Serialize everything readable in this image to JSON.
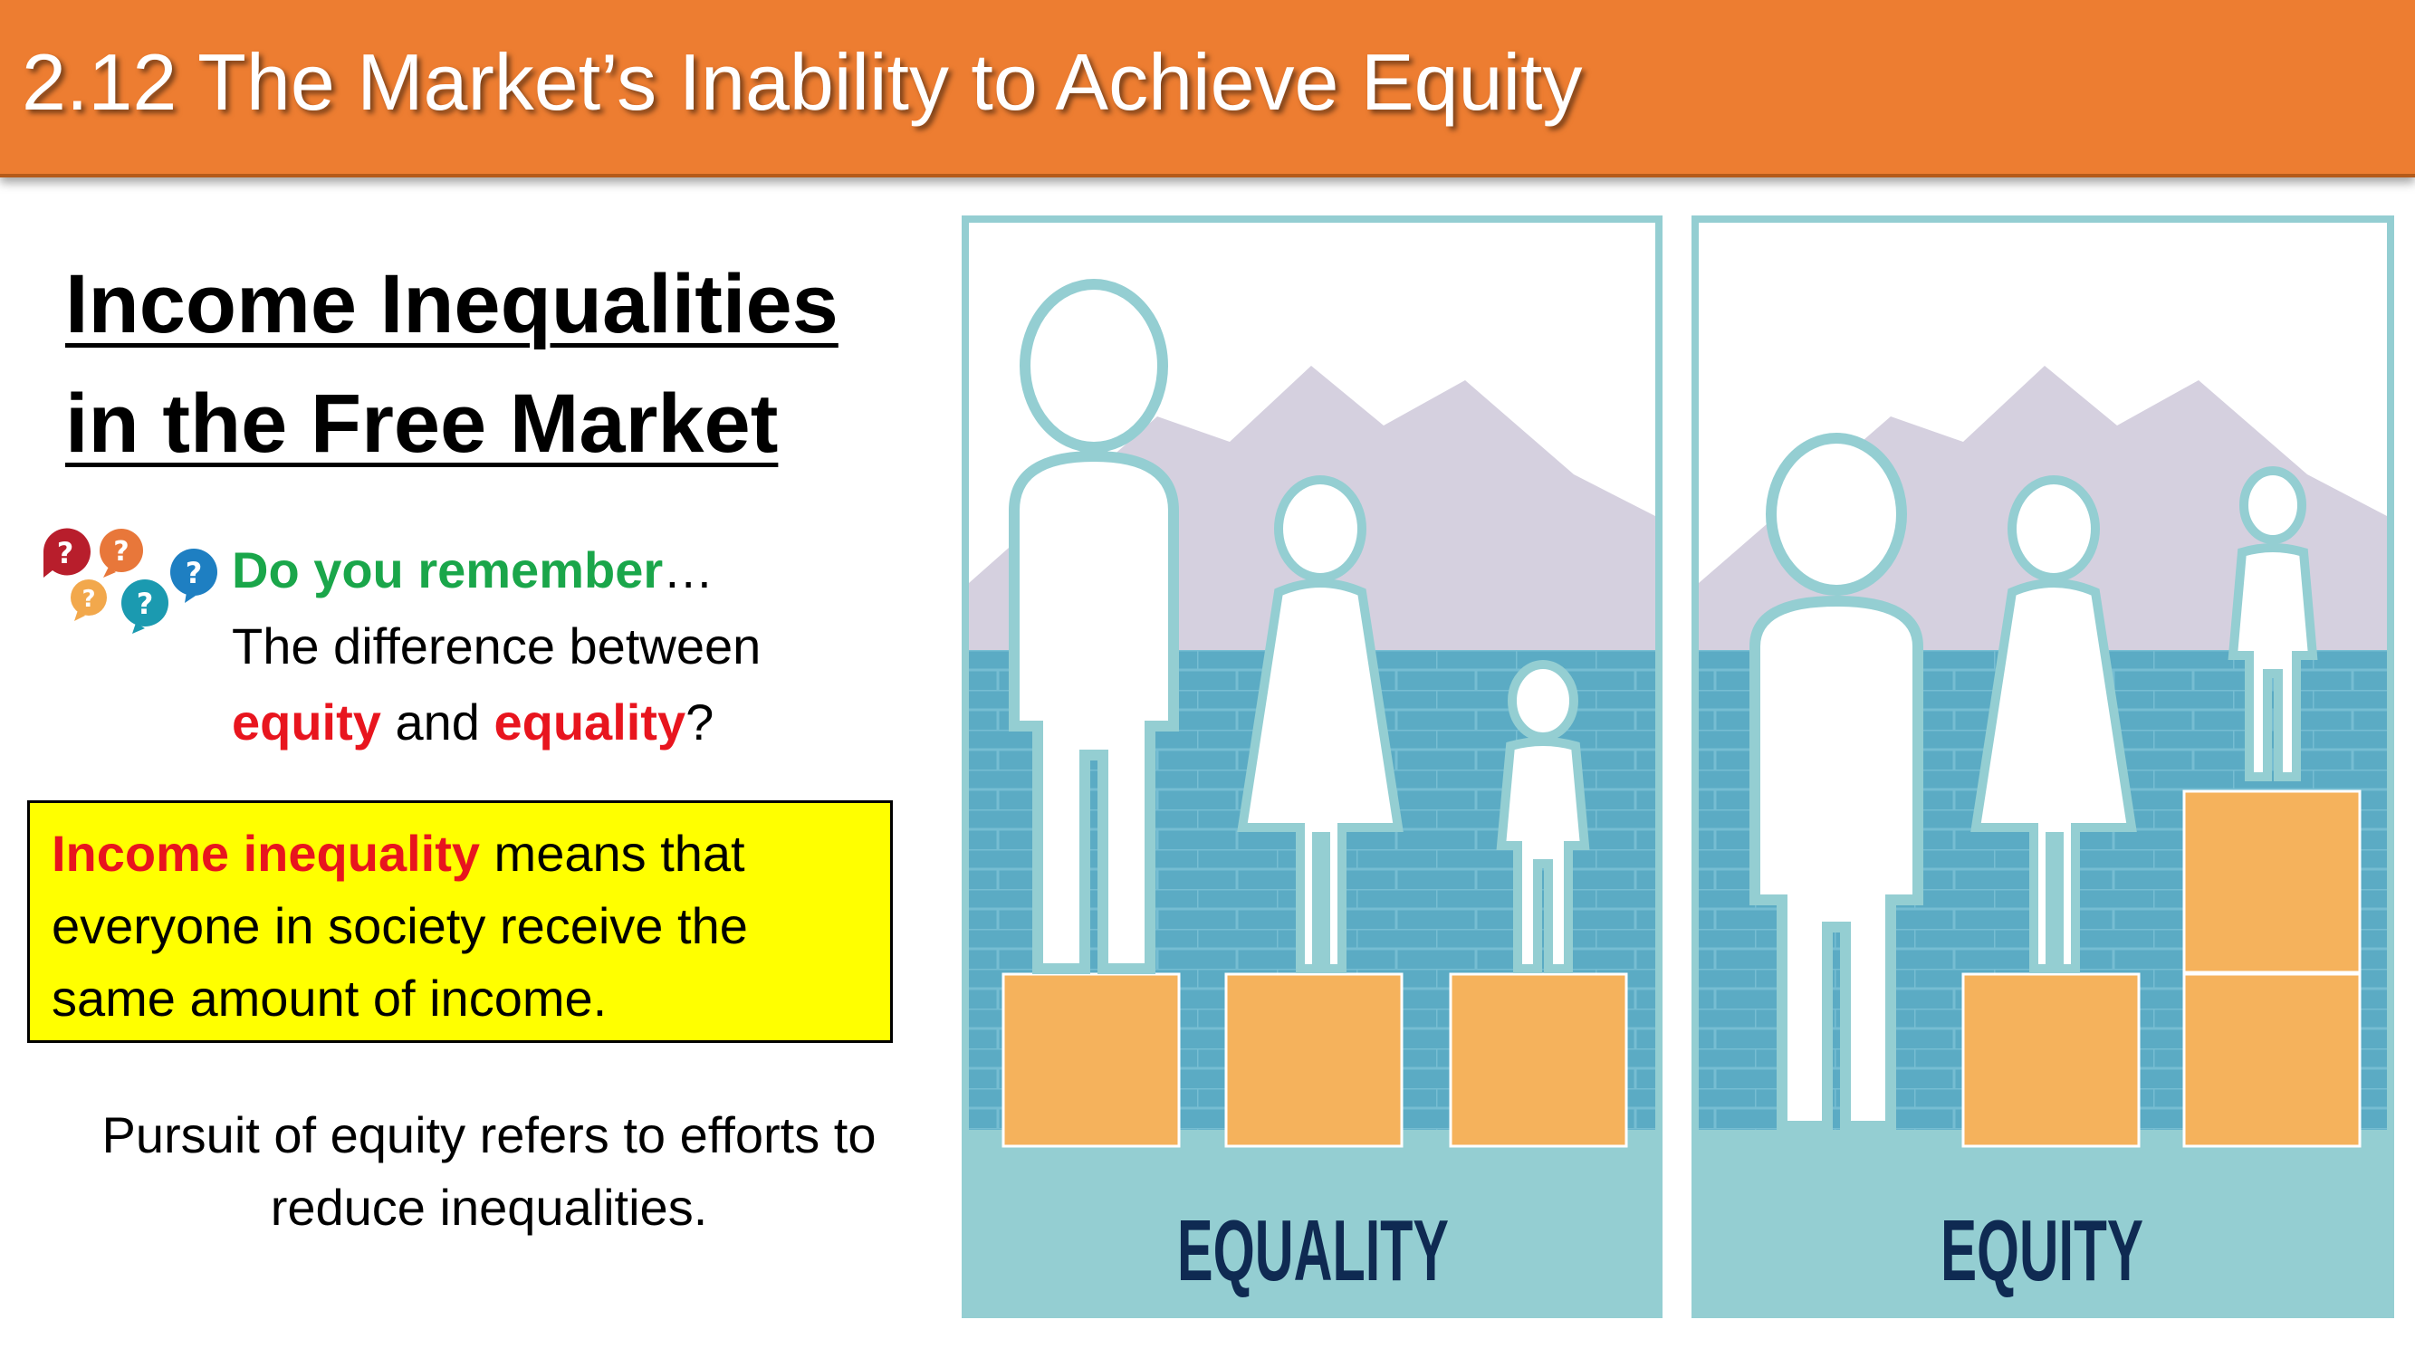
{
  "slide": {
    "title": "2.12 The Market’s Inability to Achieve Equity",
    "heading_line1": "Income Inequalities",
    "heading_line2": "in the Free Market"
  },
  "remember": {
    "prompt": "Do you remember",
    "ellipsis": "…",
    "line2": "The difference between",
    "term1": "equity",
    "connector": " and ",
    "term2": "equality",
    "question_mark": "?"
  },
  "definition": {
    "term": "Income inequality",
    "rest": " means that everyone in society receive the same amount of income."
  },
  "pursuit_text_line1": "Pursuit of equity refers to efforts to",
  "pursuit_text_line2": "reduce inequalities.",
  "illustration": {
    "left_label": "EQUALITY",
    "right_label": "EQUITY"
  },
  "colors": {
    "title_bar": "#ED7D31",
    "frame": "#94CED2",
    "wall": "#5BABC4",
    "mountain": "#D5D0DF",
    "box": "#F5B25C",
    "label": "#0F2A52",
    "accent_green": "#1AA64A",
    "accent_red": "#E8151E",
    "highlight": "#FFFF00"
  },
  "icons": [
    "question-bubbles-icon"
  ]
}
